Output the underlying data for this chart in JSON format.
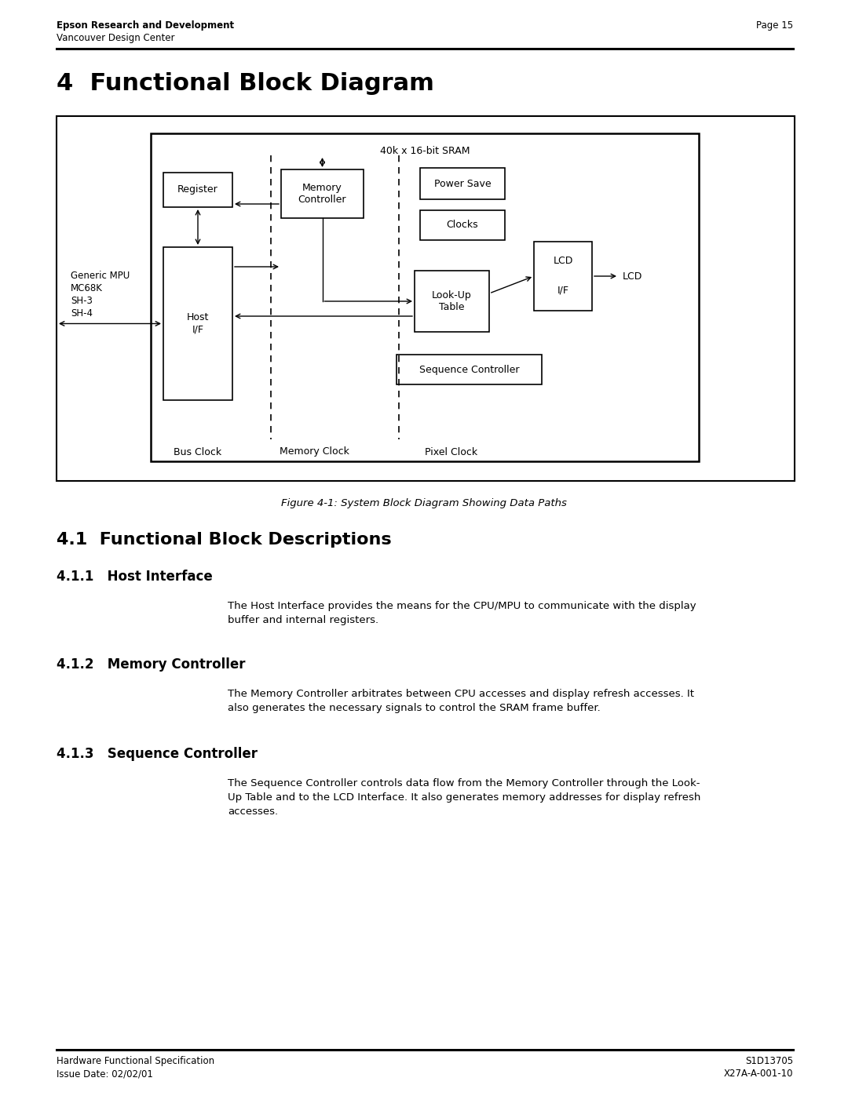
{
  "header_left_line1": "Epson Research and Development",
  "header_left_line2": "Vancouver Design Center",
  "header_right": "Page 15",
  "section_title": "4  Functional Block Diagram",
  "figure_caption": "Figure 4-1: System Block Diagram Showing Data Paths",
  "section41_title": "4.1  Functional Block Descriptions",
  "section411_title": "4.1.1   Host Interface",
  "section411_body1": "The Host Interface provides the means for the CPU/MPU to communicate with the display",
  "section411_body2": "buffer and internal registers.",
  "section412_title": "4.1.2   Memory Controller",
  "section412_body1": "The Memory Controller arbitrates between CPU accesses and display refresh accesses. It",
  "section412_body2": "also generates the necessary signals to control the SRAM frame buffer.",
  "section413_title": "4.1.3   Sequence Controller",
  "section413_body1": "The Sequence Controller controls data flow from the Memory Controller through the Look-",
  "section413_body2": "Up Table and to the LCD Interface. It also generates memory addresses for display refresh",
  "section413_body3": "accesses.",
  "footer_left_line1": "Hardware Functional Specification",
  "footer_left_line2": "Issue Date: 02/02/01",
  "footer_right_line1": "S1D13705",
  "footer_right_line2": "X27A-A-001-10",
  "bg_color": "#ffffff",
  "sram_label": "40k x 16-bit SRAM",
  "register_label": "Register",
  "memory_controller_label": "Memory\nController",
  "power_save_label": "Power Save",
  "clocks_label": "Clocks",
  "host_if_label": "Host\nI/F",
  "lookup_table_label": "Look-Up\nTable",
  "lcd_if_label_1": "LCD",
  "lcd_if_label_2": "I/F",
  "sequence_controller_label": "Sequence Controller",
  "bus_clock_label": "Bus Clock",
  "memory_clock_label": "Memory Clock",
  "pixel_clock_label": "Pixel Clock",
  "mpu_label_1": "Generic MPU",
  "mpu_label_2": "MC68K",
  "mpu_label_3": "SH-3",
  "mpu_label_4": "SH-4",
  "lcd_label": "LCD"
}
